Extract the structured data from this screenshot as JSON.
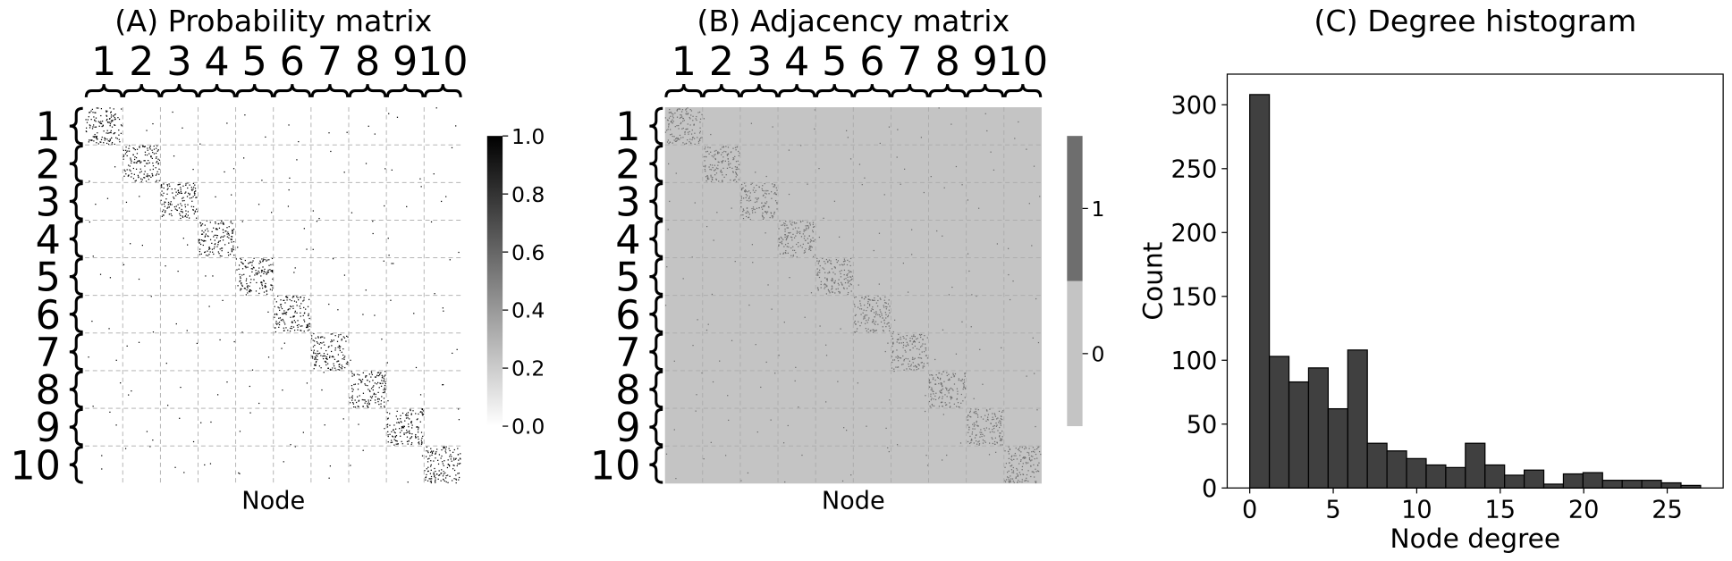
{
  "chart_data": [
    {
      "type": "heatmap",
      "title": "(A) Probability matrix",
      "xlabel": "Node",
      "categories": [
        "1",
        "2",
        "3",
        "4",
        "5",
        "6",
        "7",
        "8",
        "9",
        "10"
      ],
      "cmap": [
        "#ffffff",
        "#000000"
      ],
      "background": "#ffffff",
      "colorbar": {
        "lim": [
          0,
          1
        ],
        "ticks": [
          {
            "value": 0,
            "label": "0.0"
          },
          {
            "value": 0.2,
            "label": "0.2"
          },
          {
            "value": 0.4,
            "label": "0.4"
          },
          {
            "value": 0.6,
            "label": "0.6"
          },
          {
            "value": 0.8,
            "label": "0.8"
          },
          {
            "value": 1,
            "label": "1.0"
          }
        ]
      }
    },
    {
      "type": "heatmap",
      "title": "(B) Adjacency matrix",
      "xlabel": "Node",
      "categories": [
        "1",
        "2",
        "3",
        "4",
        "5",
        "6",
        "7",
        "8",
        "9",
        "10"
      ],
      "cmap": [
        "#c4c4c4",
        "#6e6e6e"
      ],
      "background": "#c4c4c4",
      "colorbar": {
        "lim": [
          -0.5,
          1.5
        ],
        "ticks": [
          0,
          1
        ]
      }
    },
    {
      "type": "histogram",
      "title": "(C) Degree histogram",
      "xlabel": "Node degree",
      "ylabel": "Count",
      "color": "#404040",
      "bins": [
        0,
        1.174,
        2.348,
        3.522,
        4.696,
        5.87,
        7.043,
        8.217,
        9.391,
        10.565,
        11.739,
        12.913,
        14.087,
        15.261,
        16.435,
        17.609,
        18.783,
        19.957,
        21.13,
        22.304,
        23.478,
        24.652,
        25.826,
        27
      ],
      "values": [
        308,
        103,
        83,
        94,
        62,
        108,
        35,
        29,
        23,
        18,
        16,
        35,
        18,
        10,
        14,
        3,
        11,
        12,
        6,
        6,
        6,
        4,
        2
      ],
      "xlim": [
        -1.35,
        28.35
      ],
      "ylim": [
        0,
        324
      ],
      "xticks": [
        0,
        5,
        10,
        15,
        20,
        25
      ],
      "yticks": [
        0,
        50,
        100,
        150,
        200,
        250,
        300
      ]
    }
  ]
}
